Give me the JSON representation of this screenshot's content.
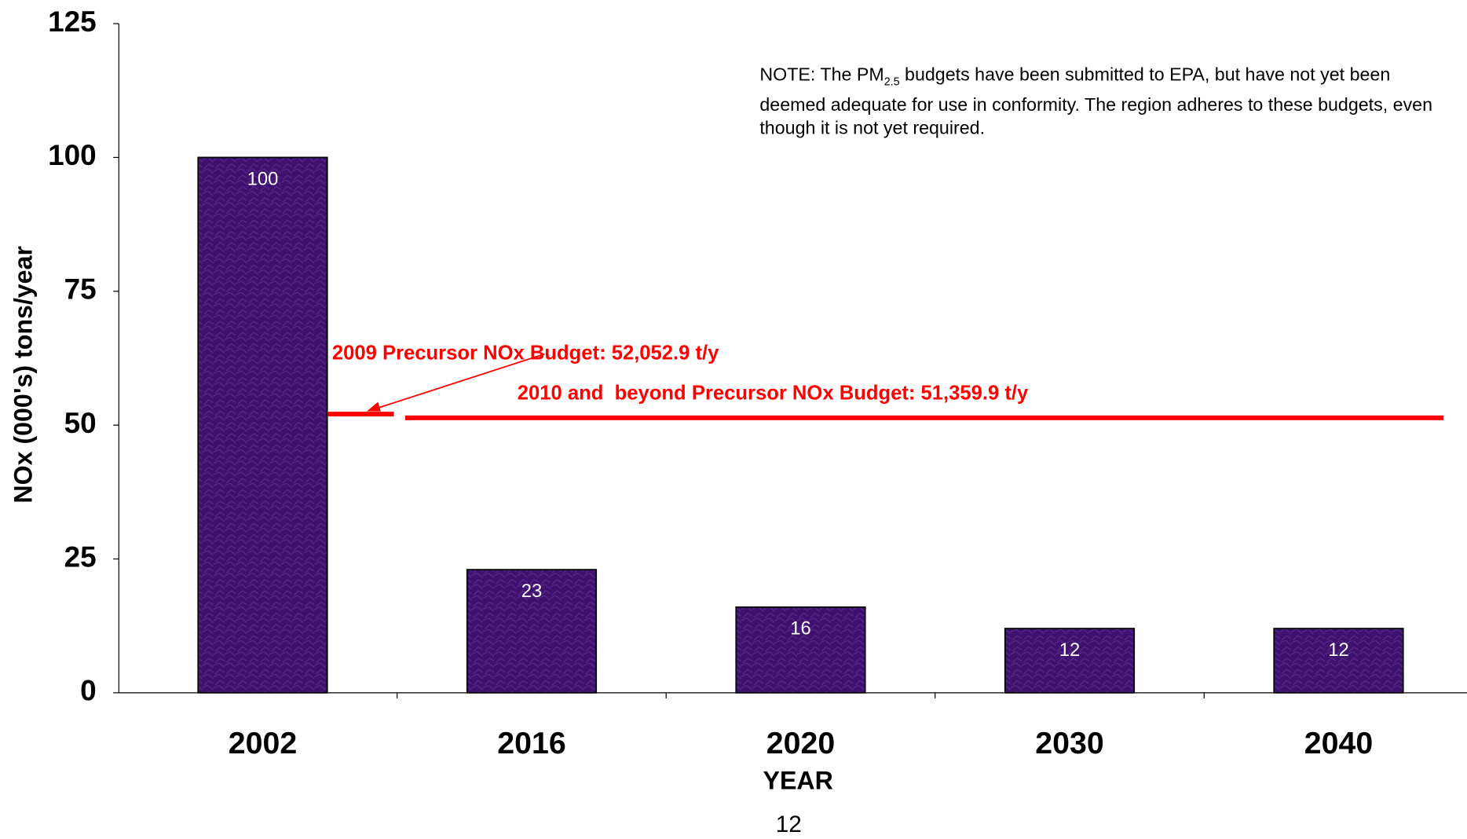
{
  "chart_data": {
    "type": "bar",
    "categories": [
      "2002",
      "2016",
      "2020",
      "2030",
      "2040"
    ],
    "values": [
      100,
      23,
      16,
      12,
      12
    ],
    "color": "#3f1270",
    "ylim": [
      0,
      125
    ],
    "yticks": [
      0,
      25,
      50,
      75,
      100,
      125
    ],
    "grid": false,
    "x_label": "YEAR",
    "y_label": "NOx (000's) tons/year",
    "budgets": [
      {
        "label": "2009 Precursor NOx Budget: 52,052.9 t/y",
        "value": 52.0529,
        "color": "#ff0000"
      },
      {
        "label": "2010 and  beyond Precursor NOx Budget: 51,359.9 t/y",
        "value": 51.3599,
        "color": "#ff0000"
      }
    ],
    "note": {
      "prefix": "NOTE: The PM",
      "subscript": "2.5",
      "text": " budgets have been submitted to EPA, but have not yet been deemed adequate for use in conformity. The region adheres to these budgets, even though it is not yet required."
    },
    "page_number": "12"
  }
}
